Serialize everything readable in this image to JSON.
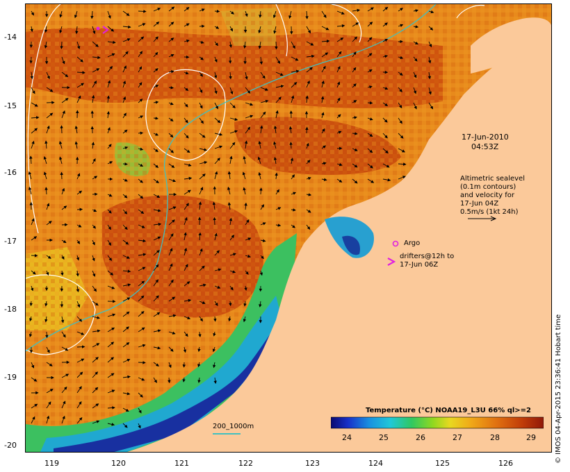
{
  "map": {
    "date": "17-Jun-2010",
    "time": "04:53Z",
    "lon_ticks": [
      "119",
      "120",
      "121",
      "122",
      "123",
      "124",
      "125",
      "126"
    ],
    "lat_ticks": [
      "-14",
      "-15",
      "-16",
      "-17",
      "-18",
      "-19",
      "-20"
    ],
    "lon_range": [
      118.6,
      126.6
    ],
    "lat_range": [
      -13.6,
      -20.1
    ],
    "land_color": "#fbc99a",
    "contour_color": "#ffffff",
    "isobath_color": "#40c0c0"
  },
  "legend": {
    "altimetry_line1": "Altimetric sealevel",
    "altimetry_line2": "(0.1m contours)",
    "altimetry_line3": "and velocity for",
    "altimetry_line4": "17-Jun 04Z",
    "altimetry_line5": "0.5m/s (1kt 24h)",
    "argo_label": "Argo",
    "drifters_line1": "drifters@12h to",
    "drifters_line2": "17-Jun 06Z",
    "isobath_label": "200_1000m"
  },
  "colorbar": {
    "title": "Temperature (°C) NOAA19_L3U 66% ql>=2",
    "ticks": [
      "24",
      "25",
      "26",
      "27",
      "28",
      "29"
    ],
    "range": [
      23.5,
      29.3
    ]
  },
  "credit": "© IMOS 04-Apr-2015 23:36:41 Hobart time"
}
